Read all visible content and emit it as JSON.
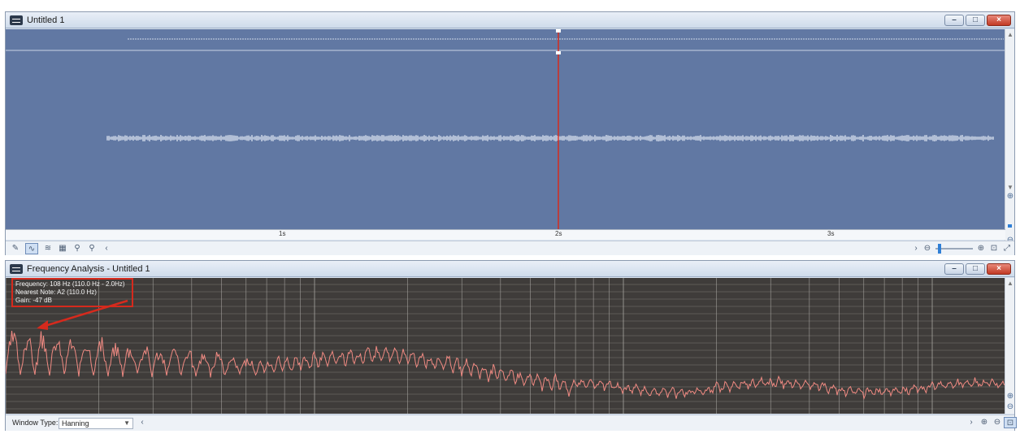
{
  "waveform_window": {
    "title": "Untitled 1",
    "window_buttons": {
      "minimize": "–",
      "maximize": "□",
      "close": "×"
    },
    "ruler_labels": [
      "1s",
      "2s",
      "3s"
    ],
    "toolbar_icons": [
      "pencil-icon",
      "waveform-view-icon",
      "spectral-view-icon",
      "grid-view-icon",
      "marker-icon",
      "marker-2-icon",
      "chevron-left-icon"
    ],
    "zoom_controls": [
      "chevron-right-icon",
      "zoom-out-icon",
      "zoom-in-icon",
      "zoom-fit-icon",
      "zoom-selection-icon",
      "zoom-full-icon"
    ],
    "playhead_position_seconds": 2.0,
    "colors": {
      "background": "#6178a3",
      "playhead": "#d62a1d",
      "waveform": "#e8eef8"
    }
  },
  "frequency_window": {
    "title": "Frequency Analysis - Untitled 1",
    "window_buttons": {
      "minimize": "–",
      "maximize": "□",
      "close": "×"
    },
    "info": {
      "frequency": "Frequency: 108 Hz (110.0 Hz - 2.0Hz)",
      "nearest_note": "Nearest Note: A2 (110.0 Hz)",
      "gain": "Gain: -47 dB"
    },
    "window_type_label": "Window Type:",
    "window_type_value": "Hanning",
    "colors": {
      "background": "#3f3c3a",
      "grid": "#8a8784",
      "spectrum": "#f08a82",
      "annotation": "#d62a1d"
    }
  }
}
